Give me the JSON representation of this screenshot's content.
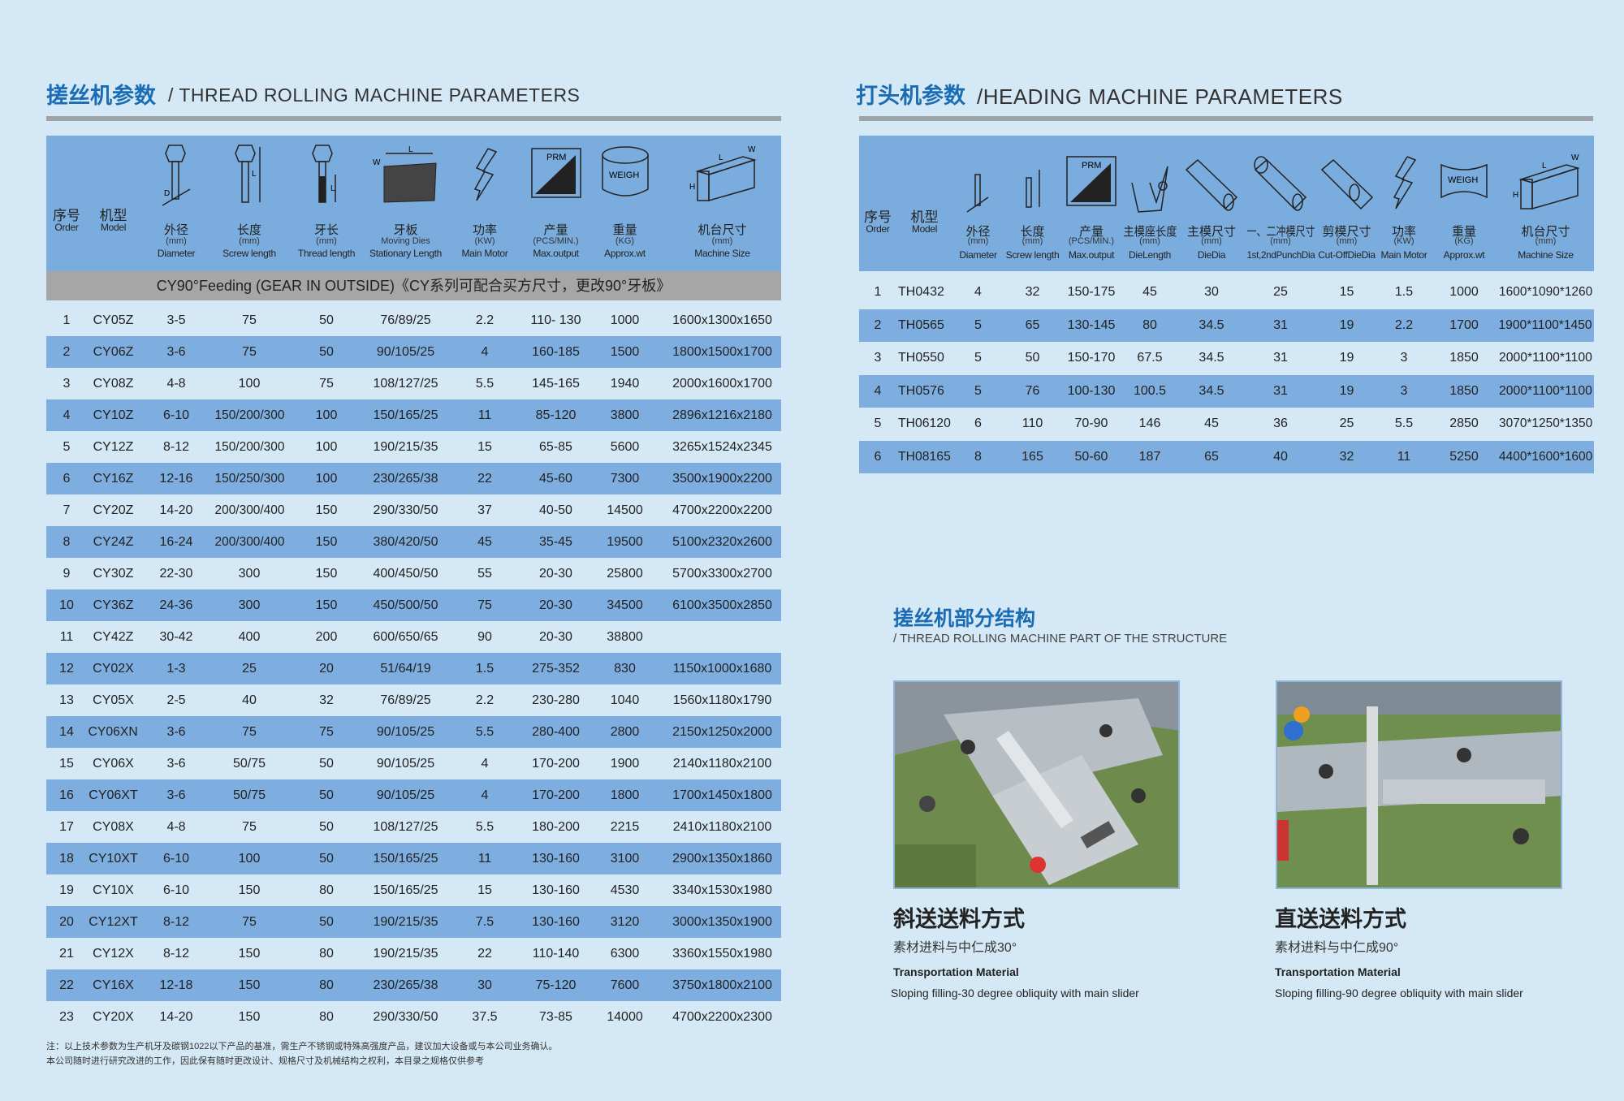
{
  "rolling": {
    "title_cn": "搓丝机参数",
    "title_en": "/ THREAD ROLLING MACHINE PARAMETERS",
    "columns": [
      {
        "cn": "序号",
        "unit": "",
        "en": "Order",
        "icon": ""
      },
      {
        "cn": "机型",
        "unit": "",
        "en": "Model",
        "icon": ""
      },
      {
        "cn": "外径",
        "unit": "(mm)",
        "en": "Diameter",
        "icon": "bolt-diameter-icon"
      },
      {
        "cn": "长度",
        "unit": "(mm)",
        "en": "Screw length",
        "icon": "bolt-length-icon"
      },
      {
        "cn": "牙长",
        "unit": "(mm)",
        "en": "Thread length",
        "icon": "thread-length-icon"
      },
      {
        "cn": "牙板",
        "unit": "Moving Dies",
        "en": "Stationary Length",
        "icon": "die-plate-icon"
      },
      {
        "cn": "功率",
        "unit": "(KW)",
        "en": "Main Motor",
        "icon": "lightning-icon"
      },
      {
        "cn": "产量",
        "unit": "(PCS/MIN.)",
        "en": "Max.output",
        "icon": "output-chart-icon",
        "icon_text": "PRM"
      },
      {
        "cn": "重量",
        "unit": "(KG)",
        "en": "Approx.wt",
        "icon": "weight-cylinder-icon",
        "icon_text": "WEIGH"
      },
      {
        "cn": "机台尺寸",
        "unit": "(mm)",
        "en": "Machine Size",
        "icon": "machine-box-icon"
      }
    ],
    "band": "CY90°Feeding (GEAR IN OUTSIDE)《CY系列可配合买方尺寸，更改90°牙板》",
    "rows": [
      [
        "1",
        "CY05Z",
        "3-5",
        "75",
        "50",
        "76/89/25",
        "2.2",
        "110- 130",
        "1000",
        "1600x1300x1650"
      ],
      [
        "2",
        "CY06Z",
        "3-6",
        "75",
        "50",
        "90/105/25",
        "4",
        "160-185",
        "1500",
        "1800x1500x1700"
      ],
      [
        "3",
        "CY08Z",
        "4-8",
        "100",
        "75",
        "108/127/25",
        "5.5",
        "145-165",
        "1940",
        "2000x1600x1700"
      ],
      [
        "4",
        "CY10Z",
        "6-10",
        "150/200/300",
        "100",
        "150/165/25",
        "11",
        "85-120",
        "3800",
        "2896x1216x2180"
      ],
      [
        "5",
        "CY12Z",
        "8-12",
        "150/200/300",
        "100",
        "190/215/35",
        "15",
        "65-85",
        "5600",
        "3265x1524x2345"
      ],
      [
        "6",
        "CY16Z",
        "12-16",
        "150/250/300",
        "100",
        "230/265/38",
        "22",
        "45-60",
        "7300",
        "3500x1900x2200"
      ],
      [
        "7",
        "CY20Z",
        "14-20",
        "200/300/400",
        "150",
        "290/330/50",
        "37",
        "40-50",
        "14500",
        "4700x2200x2200"
      ],
      [
        "8",
        "CY24Z",
        "16-24",
        "200/300/400",
        "150",
        "380/420/50",
        "45",
        "35-45",
        "19500",
        "5100x2320x2600"
      ],
      [
        "9",
        "CY30Z",
        "22-30",
        "300",
        "150",
        "400/450/50",
        "55",
        "20-30",
        "25800",
        "5700x3300x2700"
      ],
      [
        "10",
        "CY36Z",
        "24-36",
        "300",
        "150",
        "450/500/50",
        "75",
        "20-30",
        "34500",
        "6100x3500x2850"
      ],
      [
        "11",
        "CY42Z",
        "30-42",
        "400",
        "200",
        "600/650/65",
        "90",
        "20-30",
        "38800",
        ""
      ],
      [
        "12",
        "CY02X",
        "1-3",
        "25",
        "20",
        "51/64/19",
        "1.5",
        "275-352",
        "830",
        "1150x1000x1680"
      ],
      [
        "13",
        "CY05X",
        "2-5",
        "40",
        "32",
        "76/89/25",
        "2.2",
        "230-280",
        "1040",
        "1560x1180x1790"
      ],
      [
        "14",
        "CY06XN",
        "3-6",
        "75",
        "75",
        "90/105/25",
        "5.5",
        "280-400",
        "2800",
        "2150x1250x2000"
      ],
      [
        "15",
        "CY06X",
        "3-6",
        "50/75",
        "50",
        "90/105/25",
        "4",
        "170-200",
        "1900",
        "2140x1180x2100"
      ],
      [
        "16",
        "CY06XT",
        "3-6",
        "50/75",
        "50",
        "90/105/25",
        "4",
        "170-200",
        "1800",
        "1700x1450x1800"
      ],
      [
        "17",
        "CY08X",
        "4-8",
        "75",
        "50",
        "108/127/25",
        "5.5",
        "180-200",
        "2215",
        "2410x1180x2100"
      ],
      [
        "18",
        "CY10XT",
        "6-10",
        "100",
        "50",
        "150/165/25",
        "11",
        "130-160",
        "3100",
        "2900x1350x1860"
      ],
      [
        "19",
        "CY10X",
        "6-10",
        "150",
        "80",
        "150/165/25",
        "15",
        "130-160",
        "4530",
        "3340x1530x1980"
      ],
      [
        "20",
        "CY12XT",
        "8-12",
        "75",
        "50",
        "190/215/35",
        "7.5",
        "130-160",
        "3120",
        "3000x1350x1900"
      ],
      [
        "21",
        "CY12X",
        "8-12",
        "150",
        "80",
        "190/215/35",
        "22",
        "110-140",
        "6300",
        "3360x1550x1980"
      ],
      [
        "22",
        "CY16X",
        "12-18",
        "150",
        "80",
        "230/265/38",
        "30",
        "75-120",
        "7600",
        "3750x1800x2100"
      ],
      [
        "23",
        "CY20X",
        "14-20",
        "150",
        "80",
        "290/330/50",
        "37.5",
        "73-85",
        "14000",
        "4700x2200x2300"
      ]
    ],
    "notes": [
      "注：以上技术参数为生产机牙及碳钢1022以下产品的基准，需生产不锈钢或特殊高强度产品，建议加大设备或与本公司业务确认。",
      "本公司随时进行研究改进的工作，因此保有随时更改设计、规格尺寸及机械结构之权利，本目录之规格仅供参考"
    ]
  },
  "heading": {
    "title_cn": "打头机参数",
    "title_en": "/HEADING MACHINE PARAMETERS",
    "columns": [
      {
        "cn": "序号",
        "unit": "",
        "en": "Order",
        "icon": ""
      },
      {
        "cn": "机型",
        "unit": "",
        "en": "Model",
        "icon": ""
      },
      {
        "cn": "外径",
        "unit": "(mm)",
        "en": "Diameter",
        "icon": "rod-diameter-icon"
      },
      {
        "cn": "长度",
        "unit": "(mm)",
        "en": "Screw length",
        "icon": "rod-length-icon"
      },
      {
        "cn": "产量",
        "unit": "(PCS/MIN.)",
        "en": "Max.output",
        "icon": "output-chart-icon"
      },
      {
        "cn": "主模座长度",
        "unit": "(mm)",
        "en": "DieLength",
        "icon": "die-seat-icon"
      },
      {
        "cn": "主模尺寸",
        "unit": "(mm)",
        "en": "DieDia",
        "icon": "die-cylinder-icon"
      },
      {
        "cn": "一、二冲模尺寸",
        "unit": "(mm)",
        "en": "1st,2ndPunchDia",
        "icon": "punch-cylinder-icon"
      },
      {
        "cn": "剪模尺寸",
        "unit": "(mm)",
        "en": "Cut-OffDieDia",
        "icon": "cutoff-cylinder-icon"
      },
      {
        "cn": "功率",
        "unit": "(KW)",
        "en": "Main Motor",
        "icon": "lightning-icon"
      },
      {
        "cn": "重量",
        "unit": "(KG)",
        "en": "Approx.wt",
        "icon": "weight-icon",
        "icon_text": "WEIGH"
      },
      {
        "cn": "机台尺寸",
        "unit": "(mm)",
        "en": "Machine Size",
        "icon": "machine-box-icon"
      }
    ],
    "rows": [
      [
        "1",
        "TH0432",
        "4",
        "32",
        "150-175",
        "45",
        "30",
        "25",
        "15",
        "1.5",
        "1000",
        "1600*1090*1260"
      ],
      [
        "2",
        "TH0565",
        "5",
        "65",
        "130-145",
        "80",
        "34.5",
        "31",
        "19",
        "2.2",
        "1700",
        "1900*1100*1450"
      ],
      [
        "3",
        "TH0550",
        "5",
        "50",
        "150-170",
        "67.5",
        "34.5",
        "31",
        "19",
        "3",
        "1850",
        "2000*1100*1100"
      ],
      [
        "4",
        "TH0576",
        "5",
        "76",
        "100-130",
        "100.5",
        "34.5",
        "31",
        "19",
        "3",
        "1850",
        "2000*1100*1100"
      ],
      [
        "5",
        "TH06120",
        "6",
        "110",
        "70-90",
        "146",
        "45",
        "36",
        "25",
        "5.5",
        "2850",
        "3070*1250*1350"
      ],
      [
        "6",
        "TH08165",
        "8",
        "165",
        "50-60",
        "187",
        "65",
        "40",
        "32",
        "11",
        "5250",
        "4400*1600*1600"
      ]
    ]
  },
  "structure": {
    "title_cn": "搓丝机部分结构",
    "title_en": "/ THREAD ROLLING MACHINE PART OF THE STRUCTURE",
    "items": [
      {
        "title": "斜送送料方式",
        "sub": "素材进料与中仁成30°",
        "label": "Transportation Material",
        "desc": "Sloping filling-30 degree obliquity with main slider"
      },
      {
        "title": "直送送料方式",
        "sub": "素材进料与中仁成90°",
        "label": "Transportation Material",
        "desc": "Sloping filling-90 degree obliquity with main slider"
      }
    ]
  },
  "colors": {
    "background": "#d5e8f6",
    "header": "#7aacde",
    "stripe": "#7eaedf",
    "band": "#a6a6a6",
    "title": "#1a6db4"
  }
}
